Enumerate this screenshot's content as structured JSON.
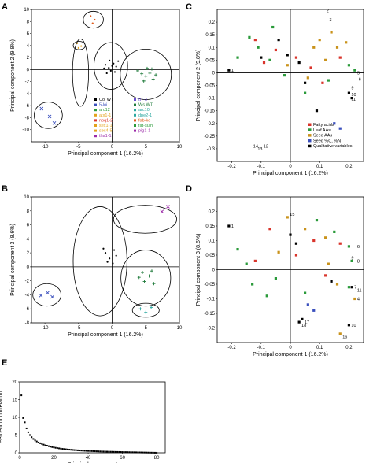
{
  "chart_data": [
    {
      "panel": "A",
      "type": "scatter",
      "xlabel": "Principal component 1 (16.2%)",
      "ylabel": "Principal component 2 (9.8%)",
      "xlim": [
        -12,
        10
      ],
      "ylim": [
        -12,
        10
      ],
      "xticks": [
        "-10",
        "-5",
        "0",
        "5",
        "10"
      ],
      "yticks": [
        "10",
        "8",
        "6",
        "4",
        "2",
        "0",
        "-2",
        "-4",
        "-6",
        "-8",
        "-10"
      ],
      "legend": [
        {
          "label": "Col WT",
          "marker": "dot",
          "color": "#000000"
        },
        {
          "label": "5-loi",
          "marker": "x",
          "color": "#3a4fbd"
        },
        {
          "label": "arc12",
          "marker": "plus",
          "color": "#2a9a3a"
        },
        {
          "label": "atx1-1",
          "marker": "dash",
          "color": "#e3a21a"
        },
        {
          "label": "npq1-2",
          "marker": "dash",
          "color": "#d9342b"
        },
        {
          "label": "sex1-1",
          "marker": "dot",
          "color": "#e3a21a"
        },
        {
          "label": "sex4-5",
          "marker": "plus",
          "color": "#e3a21a"
        },
        {
          "label": "tha1-1",
          "marker": "x",
          "color": "#9b2aa8"
        },
        {
          "label": "tt7-3",
          "marker": "tri",
          "color": "#6a4fd0"
        },
        {
          "label": "Ws WT",
          "marker": "plus",
          "color": "#1e7a3a"
        },
        {
          "label": "arc10",
          "marker": "dot",
          "color": "#2aa7a0"
        },
        {
          "label": "dpe2-1",
          "marker": "plus",
          "color": "#2aa7a0"
        },
        {
          "label": "fab-ko",
          "marker": "hash",
          "color": "#e05a1a"
        },
        {
          "label": "fat-sulh",
          "marker": "plus",
          "color": "#2a9a3a"
        },
        {
          "label": "pig1-1",
          "marker": "x",
          "color": "#9b2aa8"
        }
      ],
      "series": [
        {
          "name": "5-loi",
          "points": [
            [
              -10.5,
              -6.5
            ],
            [
              -9.3,
              -7.8
            ],
            [
              -8.6,
              -8.9
            ]
          ]
        },
        {
          "name": "Col WT",
          "points": [
            [
              -1.0,
              0.8
            ],
            [
              -0.5,
              0.3
            ],
            [
              0.2,
              1.0
            ],
            [
              0.6,
              0.5
            ],
            [
              -0.2,
              -0.2
            ],
            [
              -0.8,
              -0.6
            ],
            [
              0.9,
              1.4
            ],
            [
              -0.4,
              1.5
            ],
            [
              0.4,
              -0.4
            ],
            [
              -1.2,
              0.2
            ],
            [
              0.0,
              0.6
            ]
          ]
        },
        {
          "name": "Ws WT",
          "points": [
            [
              3.8,
              -0.2
            ],
            [
              4.4,
              -0.7
            ],
            [
              5.0,
              -1.1
            ],
            [
              5.6,
              -0.6
            ],
            [
              6.1,
              -1.6
            ],
            [
              4.7,
              -1.9
            ],
            [
              6.5,
              -0.9
            ],
            [
              5.2,
              0.2
            ],
            [
              5.9,
              0.1
            ]
          ]
        },
        {
          "name": "fab-ko",
          "points": [
            [
              -3.2,
              8.9
            ],
            [
              -2.6,
              8.3
            ],
            [
              -2.9,
              7.7
            ]
          ]
        },
        {
          "name": "atx1-1",
          "points": [
            [
              -5.2,
              4.4
            ],
            [
              -4.6,
              3.9
            ],
            [
              -5.0,
              3.6
            ]
          ]
        }
      ]
    },
    {
      "panel": "B",
      "type": "scatter",
      "xlabel": "Principal component 1 (16.2%)",
      "ylabel": "Principal component 3 (8.6%)",
      "xlim": [
        -12,
        10
      ],
      "ylim": [
        -8,
        10
      ],
      "xticks": [
        "-10",
        "-5",
        "0",
        "5",
        "10"
      ],
      "yticks": [
        "10",
        "8",
        "6",
        "4",
        "2",
        "0",
        "-2",
        "-4",
        "-6",
        "-8"
      ],
      "series": [
        {
          "name": "5-loi",
          "points": [
            [
              -10.6,
              -4.1
            ],
            [
              -9.6,
              -3.7
            ],
            [
              -8.9,
              -4.3
            ]
          ]
        },
        {
          "name": "Col WT",
          "points": [
            [
              -1.0,
              2.0
            ],
            [
              -0.4,
              1.2
            ],
            [
              0.3,
              2.4
            ],
            [
              -0.7,
              0.7
            ],
            [
              0.6,
              1.6
            ],
            [
              -1.3,
              2.6
            ],
            [
              0.1,
              0.5
            ]
          ]
        },
        {
          "name": "Ws WT",
          "points": [
            [
              4.0,
              -1.5
            ],
            [
              4.8,
              -2.1
            ],
            [
              5.5,
              -1.3
            ],
            [
              6.2,
              -2.4
            ],
            [
              4.5,
              -0.8
            ],
            [
              5.9,
              -0.6
            ]
          ]
        },
        {
          "name": "dpe2-1",
          "points": [
            [
              4.2,
              -6.0
            ],
            [
              5.0,
              -6.5
            ],
            [
              5.8,
              -5.8
            ]
          ]
        },
        {
          "name": "pig1-1",
          "points": [
            [
              7.4,
              7.9
            ],
            [
              8.3,
              8.6
            ]
          ]
        }
      ]
    },
    {
      "panel": "C",
      "type": "scatter",
      "xlabel": "Principal component 1 (16.2%)",
      "ylabel": "Principal component 2 (9.8%)",
      "xlim": [
        -0.25,
        0.25
      ],
      "ylim": [
        -0.35,
        0.25
      ],
      "xticks": [
        "-0.2",
        "-0.1",
        "0",
        "0.1",
        "0.2"
      ],
      "yticks": [
        "0.2",
        "0.15",
        "0.1",
        "0.05",
        "0",
        "-0.05",
        "-0.1",
        "-0.15",
        "-0.2",
        "-0.25",
        "-0.3"
      ],
      "legend": [
        {
          "label": "Fatty acids",
          "color": "#d9342b"
        },
        {
          "label": "Leaf AAs",
          "color": "#2a9a3a"
        },
        {
          "label": "Seed AAs",
          "color": "#c9921a"
        },
        {
          "label": "Seed %C, %N",
          "color": "#3a4fbd"
        },
        {
          "label": "Qualitative variables",
          "color": "#000000"
        }
      ],
      "annotations": [
        {
          "text": "1",
          "x": -0.21,
          "y": 0.01
        },
        {
          "text": "2",
          "x": 0.115,
          "y": 0.245
        },
        {
          "text": "3",
          "x": 0.125,
          "y": 0.21
        },
        {
          "text": "5",
          "x": 0.22,
          "y": 0.0
        },
        {
          "text": "6",
          "x": 0.225,
          "y": -0.025
        },
        {
          "text": "9",
          "x": 0.2,
          "y": -0.06
        },
        {
          "text": "10",
          "x": 0.2,
          "y": -0.085
        },
        {
          "text": "11",
          "x": 0.2,
          "y": -0.105
        },
        {
          "text": "12",
          "x": -0.1,
          "y": -0.29
        },
        {
          "text": "13",
          "x": -0.12,
          "y": -0.3
        },
        {
          "text": "14",
          "x": -0.135,
          "y": -0.29
        }
      ],
      "series": [
        {
          "name": "Fatty acids",
          "points": [
            [
              -0.12,
              0.13
            ],
            [
              -0.05,
              0.09
            ],
            [
              0.02,
              0.06
            ],
            [
              0.07,
              0.02
            ],
            [
              0.11,
              -0.04
            ],
            [
              0.17,
              0.06
            ],
            [
              -0.09,
              0.04
            ]
          ]
        },
        {
          "name": "Leaf AAs",
          "points": [
            [
              -0.18,
              0.06
            ],
            [
              -0.14,
              0.14
            ],
            [
              -0.11,
              0.1
            ],
            [
              -0.07,
              0.05
            ],
            [
              -0.06,
              0.18
            ],
            [
              0.05,
              -0.08
            ],
            [
              0.13,
              -0.03
            ],
            [
              0.2,
              0.03
            ],
            [
              0.22,
              0.01
            ],
            [
              -0.02,
              -0.01
            ]
          ]
        },
        {
          "name": "Seed AAs",
          "points": [
            [
              0.1,
              0.13
            ],
            [
              0.14,
              0.16
            ],
            [
              0.16,
              0.1
            ],
            [
              0.12,
              0.05
            ],
            [
              0.08,
              0.1
            ],
            [
              0.19,
              0.12
            ],
            [
              0.06,
              -0.02
            ],
            [
              -0.01,
              0.03
            ]
          ]
        },
        {
          "name": "Seed %C, %N",
          "points": [
            [
              0.15,
              -0.2
            ],
            [
              0.17,
              -0.22
            ]
          ]
        },
        {
          "name": "Qualitative variables",
          "points": [
            [
              -0.21,
              0.01
            ],
            [
              -0.04,
              0.13
            ],
            [
              -0.01,
              0.07
            ],
            [
              0.03,
              0.04
            ],
            [
              0.05,
              -0.04
            ],
            [
              0.09,
              -0.15
            ],
            [
              0.2,
              -0.08
            ],
            [
              0.21,
              -0.1
            ],
            [
              -0.1,
              0.06
            ]
          ]
        }
      ]
    },
    {
      "panel": "D",
      "type": "scatter",
      "xlabel": "Principal component 1 (16.2%)",
      "ylabel": "Principal component 3 (8.6%)",
      "xlim": [
        -0.25,
        0.25
      ],
      "ylim": [
        -0.25,
        0.25
      ],
      "xticks": [
        "-0.2",
        "-0.1",
        "0",
        "0.1",
        "0.2"
      ],
      "yticks": [
        "0.2",
        "0.15",
        "0.1",
        "0.05",
        "0",
        "-0.05",
        "-0.1",
        "-0.15",
        "-0.2"
      ],
      "annotations": [
        {
          "text": "1",
          "x": -0.21,
          "y": 0.15
        },
        {
          "text": "4",
          "x": 0.22,
          "y": -0.1
        },
        {
          "text": "6",
          "x": 0.22,
          "y": 0.08
        },
        {
          "text": "7",
          "x": 0.21,
          "y": -0.06
        },
        {
          "text": "8",
          "x": 0.22,
          "y": 0.03
        },
        {
          "text": "9",
          "x": 0.2,
          "y": 0.04
        },
        {
          "text": "10",
          "x": 0.2,
          "y": -0.19
        },
        {
          "text": "11",
          "x": 0.22,
          "y": -0.07
        },
        {
          "text": "15",
          "x": -0.01,
          "y": 0.19
        },
        {
          "text": "16",
          "x": 0.17,
          "y": -0.23
        },
        {
          "text": "17",
          "x": 0.04,
          "y": -0.18
        },
        {
          "text": "18",
          "x": 0.03,
          "y": -0.19
        }
      ],
      "series": [
        {
          "name": "Fatty acids",
          "points": [
            [
              -0.07,
              0.14
            ],
            [
              0.02,
              0.05
            ],
            [
              0.08,
              0.1
            ],
            [
              0.12,
              -0.02
            ],
            [
              -0.12,
              0.03
            ],
            [
              0.17,
              0.09
            ]
          ]
        },
        {
          "name": "Leaf AAs",
          "points": [
            [
              -0.18,
              0.07
            ],
            [
              -0.15,
              0.02
            ],
            [
              -0.13,
              -0.05
            ],
            [
              -0.08,
              -0.09
            ],
            [
              -0.05,
              -0.03
            ],
            [
              0.05,
              -0.08
            ],
            [
              0.09,
              0.17
            ],
            [
              0.15,
              0.13
            ],
            [
              0.2,
              0.08
            ],
            [
              0.21,
              0.03
            ],
            [
              0.2,
              -0.06
            ]
          ]
        },
        {
          "name": "Seed AAs",
          "points": [
            [
              -0.01,
              0.18
            ],
            [
              0.05,
              0.14
            ],
            [
              0.13,
              0.02
            ],
            [
              0.16,
              -0.05
            ],
            [
              0.12,
              0.11
            ],
            [
              0.22,
              -0.1
            ],
            [
              0.17,
              -0.22
            ],
            [
              -0.04,
              0.06
            ]
          ]
        },
        {
          "name": "Seed %C, %N",
          "points": [
            [
              0.06,
              -0.12
            ],
            [
              0.08,
              -0.14
            ]
          ]
        },
        {
          "name": "Qualitative variables",
          "points": [
            [
              -0.21,
              0.15
            ],
            [
              0.0,
              0.12
            ],
            [
              0.02,
              0.09
            ],
            [
              0.03,
              -0.18
            ],
            [
              0.04,
              -0.17
            ],
            [
              0.2,
              -0.19
            ],
            [
              0.21,
              -0.06
            ],
            [
              0.14,
              -0.04
            ]
          ]
        }
      ]
    },
    {
      "panel": "E",
      "type": "scatter",
      "xlabel": "Principal component",
      "ylabel": "Percent of correlation",
      "xlim": [
        0,
        85
      ],
      "ylim": [
        0,
        20
      ],
      "xticks": [
        "0",
        "20",
        "40",
        "60",
        "80"
      ],
      "yticks": [
        "20",
        "15",
        "10",
        "5",
        "0"
      ],
      "values": [
        16.2,
        9.8,
        8.6,
        6.9,
        5.8,
        5.0,
        4.4,
        3.9,
        3.5,
        3.2,
        2.9,
        2.7,
        2.5,
        2.3,
        2.1,
        2.0,
        1.85,
        1.72,
        1.6,
        1.5,
        1.4,
        1.32,
        1.24,
        1.17,
        1.1,
        1.04,
        0.98,
        0.93,
        0.88,
        0.84,
        0.8,
        0.76,
        0.72,
        0.69,
        0.66,
        0.63,
        0.6,
        0.57,
        0.55,
        0.52,
        0.5,
        0.48,
        0.46,
        0.44,
        0.42,
        0.4,
        0.38,
        0.36,
        0.35,
        0.33,
        0.32,
        0.3,
        0.29,
        0.28,
        0.26,
        0.25,
        0.24,
        0.23,
        0.22,
        0.21,
        0.2,
        0.19,
        0.18,
        0.17,
        0.16,
        0.15,
        0.14,
        0.13,
        0.12,
        0.11,
        0.1,
        0.09,
        0.08,
        0.07,
        0.06,
        0.05,
        0.04,
        0.03,
        0.02,
        0.01
      ]
    }
  ]
}
